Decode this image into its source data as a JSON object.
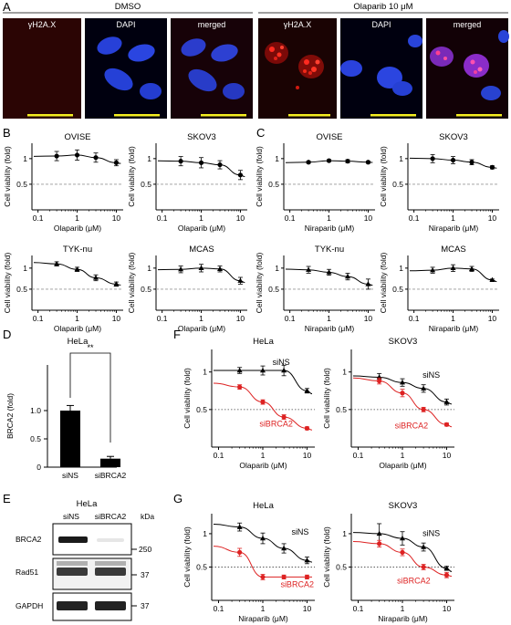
{
  "figure": {
    "panel_labels": [
      "A",
      "B",
      "C",
      "D",
      "E",
      "F",
      "G"
    ],
    "microscopy": {
      "groups": [
        {
          "label": "DMSO",
          "channels": [
            "γH2A.X",
            "DAPI",
            "merged"
          ]
        },
        {
          "label": "Olaparib 10 μM",
          "channels": [
            "γH2A.X",
            "DAPI",
            "merged"
          ]
        }
      ]
    },
    "units": {
      "viability": "Cell viability (fold)",
      "olaparib": "Olaparib (μM)",
      "niraparib": "Niraparib (μM)"
    },
    "western": {
      "title": "HeLa",
      "lanes": [
        "siNS",
        "siBRCA2"
      ],
      "kda_label": "kDa",
      "rows": [
        {
          "protein": "BRCA2",
          "kda": "250"
        },
        {
          "protein": "Rad51",
          "kda": "37"
        },
        {
          "protein": "GAPDH",
          "kda": "37"
        }
      ]
    }
  },
  "chart_data": [
    {
      "id": "B1",
      "type": "scatter",
      "title": "OVISE",
      "xlabel": "Olaparib (μM)",
      "ylabel": "Cell viability (fold)",
      "xscale": "log",
      "xlim": [
        0.07,
        15
      ],
      "ylim": [
        0,
        1.3
      ],
      "yticks": [
        0.5,
        1
      ],
      "xticks": [
        "0.1",
        "1",
        "10"
      ],
      "ref_line": 0.5,
      "series": [
        {
          "x": [
            0.3,
            1,
            3,
            10
          ],
          "y": [
            1.05,
            1.07,
            1.02,
            0.92
          ],
          "err": [
            0.09,
            0.1,
            0.09,
            0.06
          ],
          "marker": "circle",
          "color": "#000000"
        }
      ]
    },
    {
      "id": "B2",
      "type": "scatter",
      "title": "SKOV3",
      "xlabel": "Olaparib (μM)",
      "ylabel": "Cell viability (fold)",
      "xscale": "log",
      "xlim": [
        0.07,
        15
      ],
      "ylim": [
        0,
        1.3
      ],
      "yticks": [
        0.5,
        1
      ],
      "xticks": [
        "0.1",
        "1",
        "10"
      ],
      "ref_line": 0.5,
      "series": [
        {
          "x": [
            0.3,
            1,
            3,
            10
          ],
          "y": [
            0.95,
            0.92,
            0.88,
            0.68
          ],
          "err": [
            0.09,
            0.1,
            0.08,
            0.09
          ],
          "marker": "circle",
          "color": "#000000"
        }
      ]
    },
    {
      "id": "B3",
      "type": "scatter",
      "title": "TYK-nu",
      "xlabel": "Olaparib (μM)",
      "ylabel": "Cell viability (fold)",
      "xscale": "log",
      "xlim": [
        0.07,
        15
      ],
      "ylim": [
        0,
        1.3
      ],
      "yticks": [
        0.5,
        1
      ],
      "xticks": [
        "0.1",
        "1",
        "10"
      ],
      "ref_line": 0.5,
      "series": [
        {
          "x": [
            0.3,
            1,
            3,
            10
          ],
          "y": [
            1.1,
            0.97,
            0.77,
            0.62
          ],
          "err": [
            0.05,
            0.05,
            0.07,
            0.05
          ],
          "marker": "triangle",
          "color": "#000000"
        }
      ]
    },
    {
      "id": "B4",
      "type": "scatter",
      "title": "MCAS",
      "xlabel": "Olaparib (μM)",
      "ylabel": "Cell viability (fold)",
      "xscale": "log",
      "xlim": [
        0.07,
        15
      ],
      "ylim": [
        0,
        1.3
      ],
      "yticks": [
        0.5,
        1
      ],
      "xticks": [
        "0.1",
        "1",
        "10"
      ],
      "ref_line": 0.5,
      "series": [
        {
          "x": [
            0.3,
            1,
            3,
            10
          ],
          "y": [
            0.97,
            1.0,
            0.98,
            0.7
          ],
          "err": [
            0.08,
            0.09,
            0.07,
            0.08
          ],
          "marker": "triangle",
          "color": "#000000"
        }
      ]
    },
    {
      "id": "C1",
      "type": "scatter",
      "title": "OVISE",
      "xlabel": "Niraparib (μM)",
      "ylabel": "Cell viability (fold)",
      "xscale": "log",
      "xlim": [
        0.07,
        15
      ],
      "ylim": [
        0,
        1.3
      ],
      "yticks": [
        0.5,
        1
      ],
      "xticks": [
        "0.1",
        "1",
        "10"
      ],
      "ref_line": 0.5,
      "series": [
        {
          "x": [
            0.3,
            1,
            3,
            10
          ],
          "y": [
            0.93,
            0.96,
            0.95,
            0.93
          ],
          "err": [
            0.02,
            0.02,
            0.03,
            0.02
          ],
          "marker": "circle",
          "color": "#000000"
        }
      ]
    },
    {
      "id": "C2",
      "type": "scatter",
      "title": "SKOV3",
      "xlabel": "Niraparib (μM)",
      "ylabel": "Cell viability (fold)",
      "xscale": "log",
      "xlim": [
        0.07,
        15
      ],
      "ylim": [
        0,
        1.3
      ],
      "yticks": [
        0.5,
        1
      ],
      "xticks": [
        "0.1",
        "1",
        "10"
      ],
      "ref_line": 0.5,
      "series": [
        {
          "x": [
            0.3,
            1,
            3,
            10
          ],
          "y": [
            1.0,
            0.97,
            0.93,
            0.83
          ],
          "err": [
            0.08,
            0.07,
            0.05,
            0.03
          ],
          "marker": "circle",
          "color": "#000000"
        }
      ]
    },
    {
      "id": "C3",
      "type": "scatter",
      "title": "TYK-nu",
      "xlabel": "Niraparib (μM)",
      "ylabel": "Cell viability (fold)",
      "xscale": "log",
      "xlim": [
        0.07,
        15
      ],
      "ylim": [
        0,
        1.3
      ],
      "yticks": [
        0.5,
        1
      ],
      "xticks": [
        "0.1",
        "1",
        "10"
      ],
      "ref_line": 0.5,
      "series": [
        {
          "x": [
            0.3,
            1,
            3,
            10
          ],
          "y": [
            0.96,
            0.9,
            0.8,
            0.62
          ],
          "err": [
            0.08,
            0.07,
            0.08,
            0.12
          ],
          "marker": "triangle",
          "color": "#000000"
        }
      ]
    },
    {
      "id": "C4",
      "type": "scatter",
      "title": "MCAS",
      "xlabel": "Niraparib (μM)",
      "ylabel": "Cell viability (fold)",
      "xscale": "log",
      "xlim": [
        0.07,
        15
      ],
      "ylim": [
        0,
        1.3
      ],
      "yticks": [
        0.5,
        1
      ],
      "xticks": [
        "0.1",
        "1",
        "10"
      ],
      "ref_line": 0.5,
      "series": [
        {
          "x": [
            0.3,
            1,
            3,
            10
          ],
          "y": [
            0.95,
            1.0,
            0.98,
            0.72
          ],
          "err": [
            0.07,
            0.08,
            0.06,
            0.02
          ],
          "marker": "triangle",
          "color": "#000000"
        }
      ]
    },
    {
      "id": "D",
      "type": "bar",
      "title": "HeLa",
      "ylabel": "BRCA2 (fold)",
      "categories": [
        "siNS",
        "siBRCA2"
      ],
      "values": [
        1.0,
        0.15
      ],
      "err": [
        0.09,
        0.04
      ],
      "ylim": [
        0,
        1.2
      ],
      "yticks": [
        0,
        0.5,
        1.0
      ],
      "annotation": "**"
    },
    {
      "id": "F1",
      "type": "scatter",
      "title": "HeLa",
      "xlabel": "Olaparib (μM)",
      "ylabel": "Cell viability (fold)",
      "xscale": "log",
      "xlim": [
        0.07,
        15
      ],
      "ylim": [
        0,
        1.3
      ],
      "yticks": [
        0.5,
        1
      ],
      "xticks": [
        "0.1",
        "1",
        "10"
      ],
      "ref_line": 0.5,
      "series": [
        {
          "name": "siNS",
          "x": [
            0.3,
            1,
            3,
            10
          ],
          "y": [
            1.02,
            1.02,
            1.02,
            0.75
          ],
          "err": [
            0.04,
            0.06,
            0.07,
            0.03
          ],
          "marker": "triangle",
          "color": "#000000"
        },
        {
          "name": "siBRCA2",
          "x": [
            0.3,
            1,
            3,
            10
          ],
          "y": [
            0.8,
            0.6,
            0.4,
            0.25
          ],
          "err": [
            0.03,
            0.03,
            0.03,
            0.02
          ],
          "marker": "circle",
          "color": "#dd2222"
        }
      ]
    },
    {
      "id": "F2",
      "type": "scatter",
      "title": "SKOV3",
      "xlabel": "Olaparib (μM)",
      "ylabel": "Cell viability (fold)",
      "xscale": "log",
      "xlim": [
        0.07,
        15
      ],
      "ylim": [
        0,
        1.3
      ],
      "yticks": [
        0.5,
        1
      ],
      "xticks": [
        "0.1",
        "1",
        "10"
      ],
      "ref_line": 0.5,
      "series": [
        {
          "name": "siNS",
          "x": [
            0.3,
            1,
            3,
            10
          ],
          "y": [
            0.93,
            0.86,
            0.78,
            0.6
          ],
          "err": [
            0.05,
            0.05,
            0.05,
            0.04
          ],
          "marker": "triangle",
          "color": "#000000"
        },
        {
          "name": "siBRCA2",
          "x": [
            0.3,
            1,
            3,
            10
          ],
          "y": [
            0.88,
            0.72,
            0.5,
            0.3
          ],
          "err": [
            0.04,
            0.05,
            0.03,
            0.02
          ],
          "marker": "circle",
          "color": "#dd2222"
        }
      ]
    },
    {
      "id": "G1",
      "type": "scatter",
      "title": "HeLa",
      "xlabel": "Niraparib (μM)",
      "ylabel": "Cell viability (fold)",
      "xscale": "log",
      "xlim": [
        0.07,
        15
      ],
      "ylim": [
        0,
        1.3
      ],
      "yticks": [
        0.5,
        1
      ],
      "xticks": [
        "0.1",
        "1",
        "10"
      ],
      "ref_line": 0.5,
      "series": [
        {
          "name": "siNS",
          "x": [
            0.3,
            1,
            3,
            10
          ],
          "y": [
            1.1,
            0.93,
            0.78,
            0.6
          ],
          "err": [
            0.06,
            0.08,
            0.07,
            0.05
          ],
          "marker": "triangle",
          "color": "#000000"
        },
        {
          "name": "siBRCA2",
          "x": [
            0.3,
            1,
            3,
            10
          ],
          "y": [
            0.72,
            0.35,
            0.35,
            0.35
          ],
          "err": [
            0.06,
            0.04,
            0.03,
            0.03
          ],
          "marker": "circle",
          "color": "#dd2222"
        }
      ]
    },
    {
      "id": "G2",
      "type": "scatter",
      "title": "SKOV3",
      "xlabel": "Niraparib (μM)",
      "ylabel": "Cell viability (fold)",
      "xscale": "log",
      "xlim": [
        0.07,
        15
      ],
      "ylim": [
        0,
        1.3
      ],
      "yticks": [
        0.5,
        1
      ],
      "xticks": [
        "0.1",
        "1",
        "10"
      ],
      "ref_line": 0.5,
      "series": [
        {
          "name": "siNS",
          "x": [
            0.3,
            1,
            3,
            10
          ],
          "y": [
            1.0,
            0.93,
            0.8,
            0.48
          ],
          "err": [
            0.15,
            0.1,
            0.06,
            0.03
          ],
          "marker": "triangle",
          "color": "#000000"
        },
        {
          "name": "siBRCA2",
          "x": [
            0.3,
            1,
            3,
            10
          ],
          "y": [
            0.85,
            0.72,
            0.5,
            0.38
          ],
          "err": [
            0.05,
            0.05,
            0.04,
            0.04
          ],
          "marker": "circle",
          "color": "#dd2222"
        }
      ]
    }
  ]
}
